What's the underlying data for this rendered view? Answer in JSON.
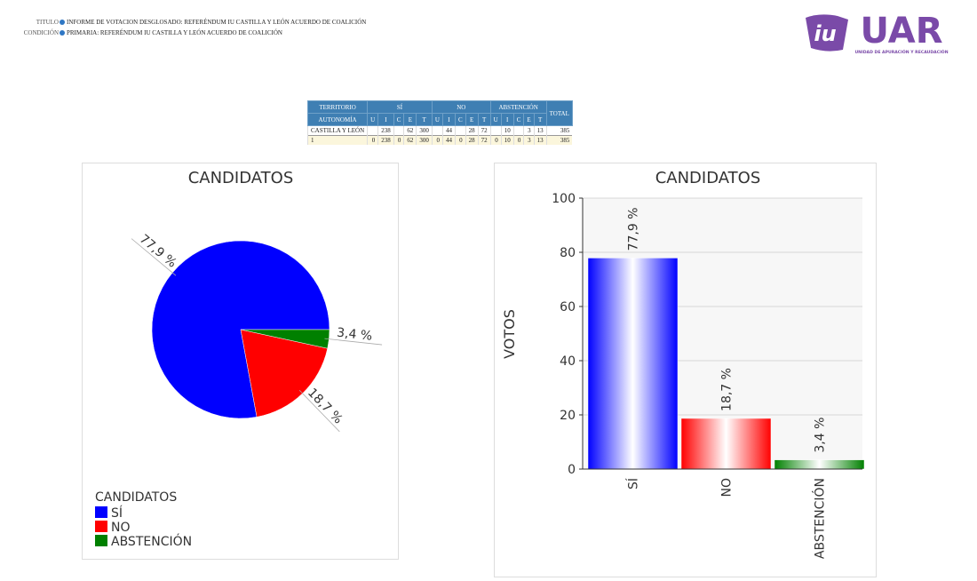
{
  "header": {
    "titulo_label": "TITULO",
    "titulo": "INFORME DE VOTACION DESGLOSADO: REFERÉNDUM IU CASTILLA Y LEÓN ACUERDO DE COALICIÓN",
    "condicion_label": "CONDICIÓN",
    "condicion": "PRIMARIA: REFERÉNDUM IU CASTILLA Y LEÓN ACUERDO DE COALICIÓN"
  },
  "logo": {
    "emblem": "iu",
    "text": "UAR",
    "subtitle": "UNIDAD DE APURACIÓN Y RECAUDACIÓN"
  },
  "table": {
    "header_top": [
      "TERRITORIO",
      "SÍ",
      "NO",
      "ABSTENCIÓN",
      "TOTAL"
    ],
    "header_sub": [
      "AUTONOMÍA",
      "U",
      "I",
      "C",
      "E",
      "T",
      "U",
      "I",
      "C",
      "E",
      "T",
      "U",
      "I",
      "C",
      "E",
      "T"
    ],
    "rows": [
      [
        "CASTILLA Y LEÓN",
        null,
        238,
        null,
        62,
        300,
        null,
        44,
        null,
        28,
        72,
        null,
        10,
        null,
        3,
        13,
        385
      ],
      [
        1,
        0,
        238,
        0,
        62,
        300,
        0,
        44,
        0,
        28,
        72,
        0,
        10,
        0,
        3,
        13,
        385
      ]
    ]
  },
  "chart_data": [
    {
      "type": "pie",
      "title": "CANDIDATOS",
      "legend_title": "CANDIDATOS",
      "categories": [
        "SÍ",
        "NO",
        "ABSTENCIÓN"
      ],
      "values": [
        77.9,
        18.7,
        3.4
      ],
      "value_labels": [
        "77,9 %",
        "18,7 %",
        "3,4 %"
      ],
      "colors": [
        "#0000ff",
        "#ff0000",
        "#008000"
      ]
    },
    {
      "type": "bar",
      "title": "CANDIDATOS",
      "y_label": "VOTOS",
      "categories": [
        "SÍ",
        "NO",
        "ABSTENCIÓN"
      ],
      "values": [
        77.9,
        18.7,
        3.4
      ],
      "value_labels": [
        "77,9 %",
        "18,7 %",
        "3,4 %"
      ],
      "colors": [
        "#0000ff",
        "#ff0000",
        "#008000"
      ],
      "ylim": [
        0,
        100
      ],
      "yticks": [
        0,
        20,
        40,
        60,
        80,
        100
      ],
      "grid": true
    }
  ]
}
